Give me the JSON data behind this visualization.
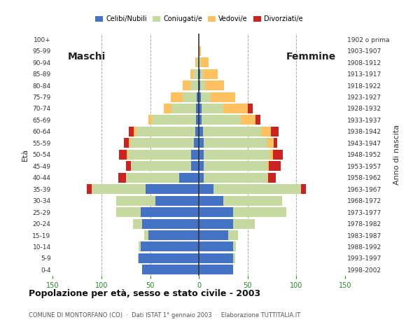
{
  "age_groups": [
    "0-4",
    "5-9",
    "10-14",
    "15-19",
    "20-24",
    "25-29",
    "30-34",
    "35-39",
    "40-44",
    "45-49",
    "50-54",
    "55-59",
    "60-64",
    "65-69",
    "70-74",
    "75-79",
    "80-84",
    "85-89",
    "90-94",
    "95-99",
    "100+"
  ],
  "birth_years": [
    "1998-2002",
    "1993-1997",
    "1988-1992",
    "1983-1987",
    "1978-1982",
    "1973-1977",
    "1968-1972",
    "1963-1967",
    "1958-1962",
    "1953-1957",
    "1948-1952",
    "1943-1947",
    "1938-1942",
    "1933-1937",
    "1928-1932",
    "1923-1927",
    "1918-1922",
    "1913-1917",
    "1908-1912",
    "1903-1907",
    "1902 o prima"
  ],
  "males": {
    "celibe": [
      58,
      62,
      60,
      52,
      58,
      60,
      45,
      55,
      20,
      8,
      8,
      5,
      4,
      3,
      3,
      2,
      1,
      1,
      0,
      0,
      0
    ],
    "coniugato": [
      0,
      1,
      2,
      4,
      10,
      25,
      40,
      55,
      55,
      62,
      65,
      65,
      60,
      45,
      25,
      15,
      8,
      5,
      2,
      0,
      0
    ],
    "vedovo": [
      0,
      0,
      0,
      0,
      0,
      0,
      0,
      0,
      0,
      0,
      1,
      2,
      3,
      4,
      8,
      12,
      8,
      3,
      2,
      0,
      0
    ],
    "divorziato": [
      0,
      0,
      0,
      0,
      0,
      0,
      0,
      5,
      8,
      5,
      8,
      5,
      5,
      0,
      0,
      0,
      0,
      0,
      0,
      0,
      0
    ]
  },
  "females": {
    "nubile": [
      35,
      35,
      35,
      30,
      35,
      35,
      25,
      15,
      5,
      5,
      5,
      5,
      4,
      3,
      3,
      2,
      1,
      1,
      0,
      0,
      0
    ],
    "coniugata": [
      0,
      2,
      3,
      10,
      22,
      55,
      60,
      90,
      65,
      65,
      68,
      65,
      60,
      40,
      22,
      10,
      5,
      3,
      2,
      0,
      0
    ],
    "vedova": [
      0,
      0,
      0,
      0,
      0,
      0,
      0,
      0,
      1,
      2,
      3,
      7,
      10,
      15,
      25,
      25,
      20,
      15,
      8,
      2,
      0
    ],
    "divorziata": [
      0,
      0,
      0,
      0,
      0,
      0,
      0,
      5,
      8,
      12,
      10,
      3,
      8,
      5,
      5,
      0,
      0,
      0,
      0,
      0,
      0
    ]
  },
  "colors": {
    "celibe": "#4472c4",
    "coniugato": "#c5d9a0",
    "vedovo": "#ffc060",
    "divorziato": "#cc2222"
  },
  "xlim": 150,
  "title": "Popolazione per età, sesso e stato civile - 2003",
  "subtitle": "COMUNE DI MONTORFANO (CO)  ·  Dati ISTAT 1° gennaio 2003  ·  Elaborazione TUTTITALIA.IT",
  "legend_labels": [
    "Celibi/Nubili",
    "Coniugati/e",
    "Vedovi/e",
    "Divorziati/e"
  ],
  "ylabel_left": "Età",
  "ylabel_right": "Anno di nascita",
  "maschi_label": "Maschi",
  "femmine_label": "Femmine",
  "bg_color": "#ffffff",
  "grid_color": "#aaaaaa",
  "axis_color": "#228B22"
}
